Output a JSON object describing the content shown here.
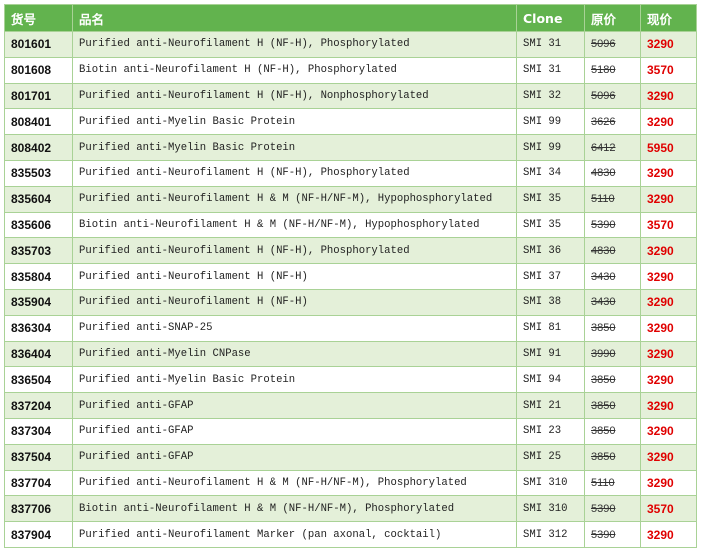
{
  "table": {
    "header": [
      "货号",
      "品名",
      "Clone",
      "原价",
      "现价"
    ],
    "rows": [
      [
        "801601",
        "Purified anti-Neurofilament H (NF-H), Phosphorylated",
        "SMI 31",
        "5096",
        "3290"
      ],
      [
        "801608",
        "Biotin anti-Neurofilament H (NF-H), Phosphorylated",
        "SMI 31",
        "5180",
        "3570"
      ],
      [
        "801701",
        "Purified anti-Neurofilament H (NF-H), Nonphosphorylated",
        "SMI 32",
        "5096",
        "3290"
      ],
      [
        "808401",
        "Purified anti-Myelin Basic Protein",
        "SMI 99",
        "3626",
        "3290"
      ],
      [
        "808402",
        "Purified anti-Myelin Basic Protein",
        "SMI 99",
        "6412",
        "5950"
      ],
      [
        "835503",
        "Purified anti-Neurofilament H (NF-H), Phosphorylated",
        "SMI 34",
        "4830",
        "3290"
      ],
      [
        "835604",
        "Purified anti-Neurofilament H & M (NF-H/NF-M), Hypophosphorylated",
        "SMI 35",
        "5110",
        "3290"
      ],
      [
        "835606",
        "Biotin anti-Neurofilament H & M (NF-H/NF-M), Hypophosphorylated",
        "SMI 35",
        "5390",
        "3570"
      ],
      [
        "835703",
        "Purified anti-Neurofilament H (NF-H), Phosphorylated",
        "SMI 36",
        "4830",
        "3290"
      ],
      [
        "835804",
        "Purified anti-Neurofilament H (NF-H)",
        "SMI 37",
        "3430",
        "3290"
      ],
      [
        "835904",
        "Purified anti-Neurofilament H (NF-H)",
        "SMI 38",
        "3430",
        "3290"
      ],
      [
        "836304",
        "Purified anti-SNAP-25",
        "SMI 81",
        "3850",
        "3290"
      ],
      [
        "836404",
        "Purified anti-Myelin CNPase",
        "SMI 91",
        "3990",
        "3290"
      ],
      [
        "836504",
        "Purified anti-Myelin Basic Protein",
        "SMI 94",
        "3850",
        "3290"
      ],
      [
        "837204",
        "Purified anti-GFAP",
        "SMI 21",
        "3850",
        "3290"
      ],
      [
        "837304",
        "Purified anti-GFAP",
        "SMI 23",
        "3850",
        "3290"
      ],
      [
        "837504",
        "Purified anti-GFAP",
        "SMI 25",
        "3850",
        "3290"
      ],
      [
        "837704",
        "Purified anti-Neurofilament H & M (NF-H/NF-M), Phosphorylated",
        "SMI 310",
        "5110",
        "3290"
      ],
      [
        "837706",
        "Biotin anti-Neurofilament H & M (NF-H/NF-M), Phosphorylated",
        "SMI 310",
        "5390",
        "3570"
      ],
      [
        "837904",
        "Purified anti-Neurofilament Marker (pan axonal, cocktail)",
        "SMI 312",
        "5390",
        "3290"
      ]
    ]
  }
}
